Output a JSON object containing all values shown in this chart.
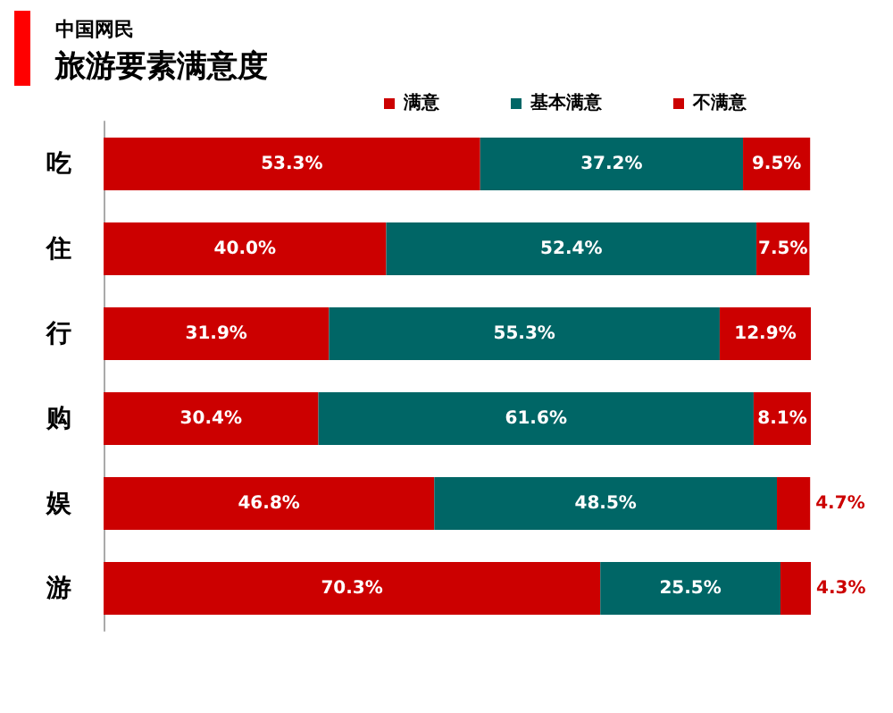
{
  "chart_data": {
    "type": "bar",
    "orientation": "horizontal",
    "stacked": true,
    "title": "旅游要素满意度",
    "subtitle": "中国网民",
    "categories": [
      "吃",
      "住",
      "行",
      "购",
      "娱",
      "游"
    ],
    "series": [
      {
        "name": "满意",
        "color": "#cc0000",
        "values": [
          53.3,
          40.0,
          31.9,
          30.4,
          46.8,
          70.3
        ],
        "value_labels": [
          "53.3%",
          "40.0%",
          "31.9%",
          "30.4%",
          "46.8%",
          "70.3%"
        ]
      },
      {
        "name": "基本满意",
        "color": "#006666",
        "values": [
          37.2,
          52.4,
          55.3,
          61.6,
          48.5,
          25.5
        ],
        "value_labels": [
          "37.2%",
          "52.4%",
          "55.3%",
          "61.6%",
          "48.5%",
          "25.5%"
        ]
      },
      {
        "name": "不满意",
        "color": "#cc0000",
        "values": [
          9.5,
          7.5,
          12.9,
          8.1,
          4.7,
          4.3
        ],
        "value_labels": [
          "9.5%",
          "7.5%",
          "12.9%",
          "8.1%",
          "4.7%",
          "4.3%"
        ]
      }
    ],
    "legend": "top",
    "grid": false,
    "tick_labels": "y"
  }
}
